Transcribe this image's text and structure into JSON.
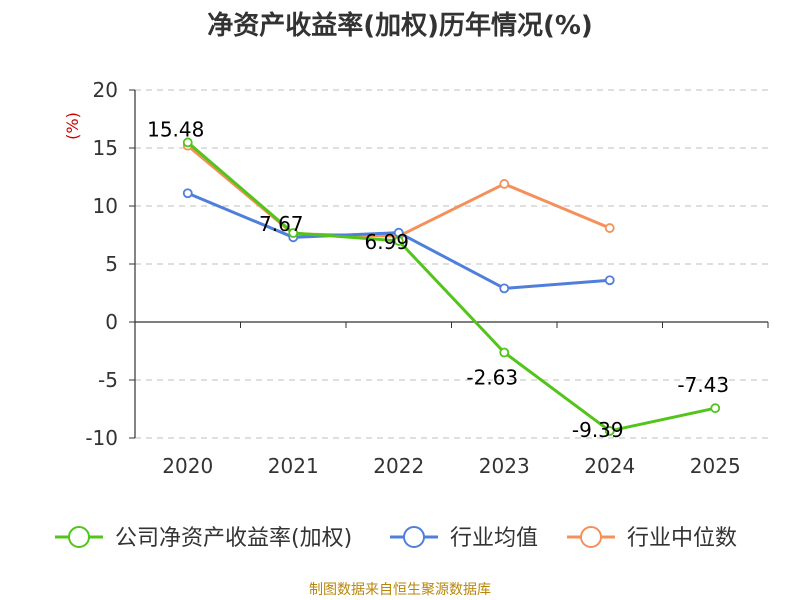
{
  "chart_data": {
    "type": "line",
    "title": "净资产收益率(加权)历年情况(%)",
    "ylabel": "(%)",
    "xlabel": "",
    "categories": [
      "2020",
      "2021",
      "2022",
      "2023",
      "2024",
      "2025"
    ],
    "ylim": [
      -10,
      20
    ],
    "yticks": [
      20,
      15,
      10,
      5,
      0,
      -5,
      -10
    ],
    "grid": true,
    "legend_position": "bottom",
    "series": [
      {
        "name": "公司净资产收益率(加权)",
        "color": "#52c41a",
        "values": [
          15.48,
          7.67,
          6.99,
          -2.63,
          -9.39,
          -7.43
        ],
        "labels": [
          "15.48",
          "7.67",
          "6.99",
          "-2.63",
          "-9.39",
          "-7.43"
        ]
      },
      {
        "name": "行业均值",
        "color": "#4f7fdb",
        "values": [
          11.1,
          7.3,
          7.7,
          2.9,
          3.6,
          null
        ]
      },
      {
        "name": "行业中位数",
        "color": "#f5905a",
        "values": [
          15.2,
          7.6,
          7.4,
          11.9,
          8.1,
          null
        ]
      }
    ],
    "source": "制图数据来自恒生聚源数据库"
  }
}
